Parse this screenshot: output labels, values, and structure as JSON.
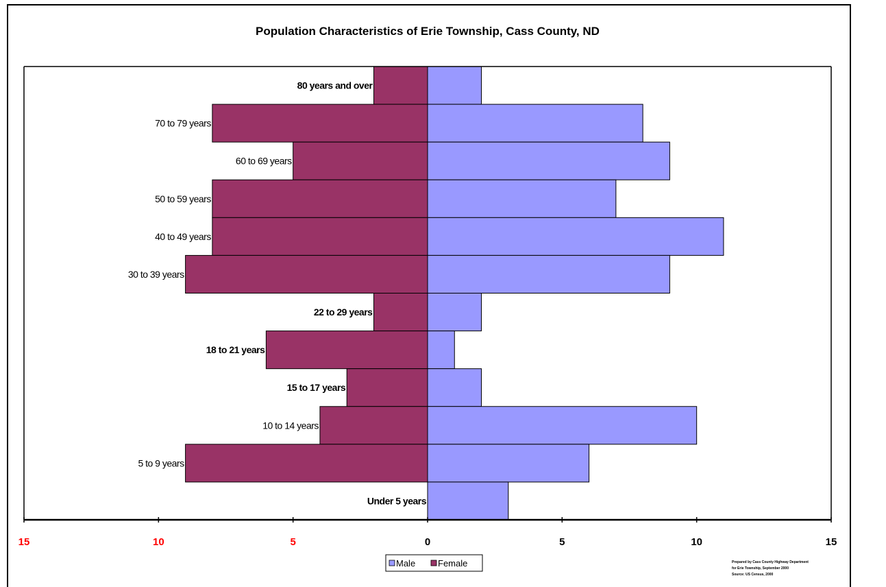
{
  "chart_data": {
    "type": "bar",
    "orientation": "horizontal-pyramid",
    "title": "Population Characteristics of Erie Township, Cass County, ND",
    "categories": [
      "80 years and over",
      "70 to 79 years",
      "60 to 69 years",
      "50 to 59 years",
      "40 to 49 years",
      "30 to 39 years",
      "22 to 29 years",
      "18 to 21 years",
      "15 to 17 years",
      "10 to 14 years",
      "5 to 9 years",
      "Under 5 years"
    ],
    "bold_categories": [
      "80 years and over",
      "22 to 29 years",
      "18 to 21 years",
      "15 to 17 years",
      "Under 5 years"
    ],
    "series": [
      {
        "name": "Male",
        "side": "right",
        "color": "#9999ff",
        "values": [
          2,
          8,
          9,
          7,
          11,
          9,
          2,
          1,
          2,
          10,
          6,
          3
        ]
      },
      {
        "name": "Female",
        "side": "left",
        "color": "#993366",
        "values": [
          2,
          8,
          5,
          8,
          8,
          9,
          2,
          6,
          3,
          4,
          9,
          0
        ]
      }
    ],
    "x_ticks": [
      {
        "value": -15,
        "label": "15",
        "color": "#ff0000"
      },
      {
        "value": -10,
        "label": "10",
        "color": "#ff0000"
      },
      {
        "value": -5,
        "label": "5",
        "color": "#ff0000"
      },
      {
        "value": 0,
        "label": "0",
        "color": "#000000"
      },
      {
        "value": 5,
        "label": "5",
        "color": "#000000"
      },
      {
        "value": 10,
        "label": "10",
        "color": "#000000"
      },
      {
        "value": 15,
        "label": "15",
        "color": "#000000"
      }
    ],
    "xlim": [
      -15,
      15
    ],
    "grid": false,
    "legend": {
      "placement": "bottom-center",
      "items": [
        "Male",
        "Female"
      ]
    },
    "credit_lines": [
      "Prepared by Cass County Highway Department",
      "for Erie Township, September 2000",
      "Source: US Census, 2000"
    ]
  }
}
